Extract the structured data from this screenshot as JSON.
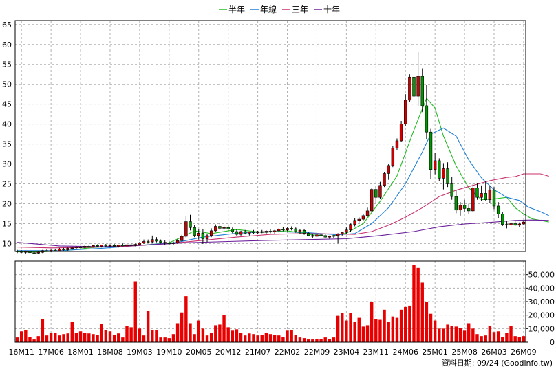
{
  "chart_data": {
    "type": "candlestick+bar",
    "legend": [
      {
        "label": "半年",
        "color": "#22bb22"
      },
      {
        "label": "年線",
        "color": "#1e7fd6"
      },
      {
        "label": "三年",
        "color": "#c8306e"
      },
      {
        "label": "十年",
        "color": "#6a1f9a"
      }
    ],
    "colors": {
      "up": "#cc0000",
      "down": "#009900",
      "volume": "#e80000",
      "grid": "#b0b0b0"
    },
    "price_axis": {
      "ylim": [
        8,
        66
      ],
      "ticks": [
        10,
        15,
        20,
        25,
        30,
        35,
        40,
        45,
        50,
        55,
        60,
        65
      ]
    },
    "volume_axis": {
      "ylim": [
        0,
        60000
      ],
      "ticks": [
        0,
        10000,
        20000,
        30000,
        40000,
        50000
      ],
      "tick_labels": [
        "0",
        "10,000",
        "20,000",
        "30,000",
        "40,000",
        "50,000"
      ]
    },
    "x_labels": [
      "16M11",
      "17M06",
      "18M01",
      "18M08",
      "19M03",
      "19M10",
      "20M05",
      "20M12",
      "21M07",
      "22M02",
      "22M09",
      "23M04",
      "23M11",
      "24M06",
      "25M01",
      "25M08",
      "26M03",
      "26M09"
    ],
    "label_start_index": 1,
    "label_step": 7,
    "start_month": "2016-10",
    "monthly": [
      [
        8.0,
        8.4,
        7.6,
        8.1,
        3500
      ],
      [
        8.1,
        8.3,
        7.6,
        7.8,
        8000
      ],
      [
        7.8,
        8.2,
        7.5,
        8.0,
        9000
      ],
      [
        8.0,
        8.2,
        7.6,
        7.7,
        4000
      ],
      [
        7.7,
        8.0,
        7.4,
        7.6,
        2000
      ],
      [
        7.6,
        8.0,
        7.4,
        7.8,
        4500
      ],
      [
        7.8,
        8.4,
        7.6,
        8.2,
        17000
      ],
      [
        8.2,
        8.6,
        7.9,
        8.0,
        5000
      ],
      [
        8.0,
        8.5,
        7.8,
        8.3,
        7000
      ],
      [
        8.3,
        8.7,
        8.0,
        8.2,
        7000
      ],
      [
        8.2,
        8.9,
        8.0,
        8.6,
        5000
      ],
      [
        8.6,
        8.9,
        8.2,
        8.4,
        6000
      ],
      [
        8.4,
        9.0,
        8.2,
        8.8,
        6500
      ],
      [
        8.8,
        9.2,
        8.5,
        8.9,
        15000
      ],
      [
        8.9,
        9.3,
        8.6,
        9.1,
        7000
      ],
      [
        9.1,
        9.4,
        8.8,
        9.0,
        8000
      ],
      [
        9.0,
        9.5,
        8.8,
        9.3,
        7000
      ],
      [
        9.3,
        9.6,
        9.0,
        9.2,
        6500
      ],
      [
        9.2,
        9.6,
        9.0,
        9.5,
        6000
      ],
      [
        9.5,
        9.8,
        9.1,
        9.3,
        5500
      ],
      [
        9.3,
        9.7,
        9.0,
        9.6,
        13500
      ],
      [
        9.6,
        9.9,
        9.2,
        9.4,
        9000
      ],
      [
        9.4,
        9.8,
        9.1,
        9.5,
        8000
      ],
      [
        9.5,
        9.9,
        9.2,
        9.3,
        5500
      ],
      [
        9.3,
        9.7,
        9.0,
        9.6,
        6500
      ],
      [
        9.6,
        10.0,
        9.3,
        9.4,
        3500
      ],
      [
        9.4,
        9.9,
        9.2,
        9.7,
        12000
      ],
      [
        9.7,
        10.2,
        9.4,
        9.5,
        11000
      ],
      [
        9.5,
        10.0,
        9.3,
        9.8,
        45000
      ],
      [
        9.8,
        10.4,
        9.5,
        10.2,
        10000
      ],
      [
        10.2,
        11.0,
        9.9,
        10.5,
        5000
      ],
      [
        10.5,
        11.0,
        10.1,
        10.4,
        23000
      ],
      [
        10.4,
        12.0,
        10.2,
        11.0,
        9000
      ],
      [
        11.0,
        11.6,
        10.3,
        10.6,
        9000
      ],
      [
        10.6,
        11.0,
        10.0,
        10.3,
        3500
      ],
      [
        10.3,
        10.8,
        9.7,
        10.1,
        3500
      ],
      [
        10.1,
        10.6,
        9.7,
        10.0,
        3000
      ],
      [
        10.0,
        10.5,
        9.6,
        10.2,
        6000
      ],
      [
        10.2,
        11.2,
        9.9,
        10.7,
        14000
      ],
      [
        10.7,
        12.2,
        10.5,
        11.8,
        22000
      ],
      [
        11.8,
        16.8,
        11.5,
        15.5,
        34000
      ],
      [
        15.5,
        17.2,
        13.3,
        14.0,
        14000
      ],
      [
        14.0,
        14.6,
        11.6,
        12.0,
        6000
      ],
      [
        12.0,
        13.6,
        11.0,
        12.6,
        16000
      ],
      [
        12.6,
        13.6,
        9.9,
        11.2,
        10000
      ],
      [
        11.2,
        12.4,
        10.4,
        12.0,
        5000
      ],
      [
        12.0,
        13.8,
        11.6,
        13.2,
        7000
      ],
      [
        13.2,
        14.8,
        12.9,
        14.3,
        12500
      ],
      [
        14.3,
        15.0,
        13.4,
        13.8,
        13000
      ],
      [
        13.8,
        14.8,
        13.2,
        14.0,
        20000
      ],
      [
        14.0,
        14.6,
        13.1,
        13.6,
        11000
      ],
      [
        13.6,
        14.0,
        12.6,
        13.0,
        8500
      ],
      [
        13.0,
        13.5,
        12.0,
        12.3,
        9500
      ],
      [
        12.3,
        13.2,
        12.0,
        13.0,
        7000
      ],
      [
        13.0,
        13.4,
        12.3,
        12.6,
        5000
      ],
      [
        12.6,
        13.0,
        12.0,
        12.9,
        6500
      ],
      [
        12.9,
        13.4,
        12.4,
        12.7,
        6000
      ],
      [
        12.7,
        13.2,
        12.3,
        13.0,
        5000
      ],
      [
        13.0,
        13.4,
        12.6,
        12.8,
        5500
      ],
      [
        12.8,
        13.3,
        12.4,
        13.1,
        7000
      ],
      [
        13.1,
        13.6,
        12.6,
        12.9,
        6000
      ],
      [
        12.9,
        13.4,
        12.5,
        13.2,
        5500
      ],
      [
        13.2,
        13.8,
        12.8,
        13.6,
        5000
      ],
      [
        13.6,
        14.2,
        13.1,
        13.4,
        4000
      ],
      [
        13.4,
        14.0,
        13.1,
        13.8,
        8500
      ],
      [
        13.8,
        14.3,
        13.3,
        13.7,
        9000
      ],
      [
        13.7,
        14.0,
        12.7,
        13.0,
        5500
      ],
      [
        13.0,
        13.6,
        12.5,
        13.3,
        3500
      ],
      [
        13.3,
        13.6,
        12.2,
        12.6,
        3000
      ],
      [
        12.6,
        12.9,
        11.8,
        12.0,
        2000
      ],
      [
        12.0,
        12.5,
        11.3,
        11.8,
        2000
      ],
      [
        11.8,
        12.5,
        11.4,
        12.2,
        2500
      ],
      [
        12.2,
        12.6,
        11.8,
        12.0,
        2500
      ],
      [
        12.0,
        12.4,
        11.3,
        11.6,
        3500
      ],
      [
        11.6,
        12.0,
        11.2,
        11.8,
        2500
      ],
      [
        11.8,
        12.2,
        11.4,
        12.0,
        3500
      ],
      [
        12.0,
        12.6,
        10.0,
        12.4,
        19500
      ],
      [
        12.4,
        13.0,
        12.0,
        12.8,
        21500
      ],
      [
        12.8,
        14.0,
        12.5,
        13.4,
        16000
      ],
      [
        13.4,
        15.0,
        13.0,
        14.8,
        21500
      ],
      [
        14.8,
        16.4,
        14.3,
        15.8,
        15000
      ],
      [
        15.8,
        16.6,
        15.3,
        16.1,
        18000
      ],
      [
        16.1,
        17.5,
        15.8,
        17.0,
        11500
      ],
      [
        17.0,
        19.0,
        16.7,
        18.2,
        12500
      ],
      [
        18.2,
        24.0,
        18.0,
        23.6,
        30000
      ],
      [
        23.6,
        24.4,
        20.2,
        21.6,
        17000
      ],
      [
        21.6,
        25.5,
        21.2,
        24.6,
        16500
      ],
      [
        24.6,
        28.0,
        24.2,
        27.6,
        24000
      ],
      [
        27.6,
        30.0,
        26.0,
        29.6,
        15000
      ],
      [
        29.6,
        34.5,
        29.2,
        34.0,
        19000
      ],
      [
        34.0,
        36.4,
        33.5,
        35.8,
        18000
      ],
      [
        35.8,
        40.8,
        35.5,
        40.0,
        24000
      ],
      [
        40.0,
        47.5,
        39.6,
        46.0,
        26000
      ],
      [
        46.0,
        52.5,
        45.5,
        51.8,
        27000
      ],
      [
        51.8,
        66.0,
        47.8,
        47.0,
        57000
      ],
      [
        47.0,
        58.2,
        44.6,
        52.0,
        55000
      ],
      [
        52.0,
        54.0,
        43.0,
        44.6,
        44000
      ],
      [
        44.6,
        49.8,
        36.2,
        38.0,
        30000
      ],
      [
        38.0,
        38.8,
        26.2,
        28.6,
        21000
      ],
      [
        28.6,
        32.8,
        27.4,
        30.8,
        16000
      ],
      [
        30.8,
        31.4,
        25.6,
        26.4,
        10000
      ],
      [
        26.4,
        30.2,
        23.6,
        28.8,
        10000
      ],
      [
        28.8,
        30.4,
        24.2,
        25.0,
        13000
      ],
      [
        25.0,
        26.8,
        21.0,
        21.8,
        12000
      ],
      [
        21.8,
        23.4,
        17.6,
        18.4,
        11500
      ],
      [
        18.4,
        20.4,
        17.0,
        19.6,
        10500
      ],
      [
        19.6,
        21.0,
        18.0,
        18.8,
        8500
      ],
      [
        18.8,
        20.0,
        17.4,
        18.2,
        14000
      ],
      [
        18.2,
        25.0,
        18.0,
        24.0,
        10000
      ],
      [
        24.0,
        25.2,
        21.0,
        21.6,
        6000
      ],
      [
        21.6,
        24.6,
        20.6,
        22.6,
        4500
      ],
      [
        22.6,
        25.6,
        20.8,
        21.0,
        5000
      ],
      [
        21.0,
        24.4,
        20.2,
        23.4,
        12000
      ],
      [
        23.4,
        24.2,
        18.6,
        19.4,
        7500
      ],
      [
        19.4,
        20.4,
        16.4,
        17.4,
        8000
      ],
      [
        17.4,
        18.0,
        14.4,
        14.8,
        4000
      ],
      [
        14.8,
        15.6,
        13.8,
        14.7,
        7000
      ],
      [
        14.7,
        15.4,
        14.0,
        15.0,
        12000
      ],
      [
        15.0,
        15.6,
        14.4,
        14.6,
        4500
      ],
      [
        14.6,
        15.3,
        14.2,
        14.9,
        4000
      ],
      [
        14.9,
        15.8,
        14.6,
        15.4,
        4500
      ]
    ],
    "ma_halfyear": [
      [
        0,
        7.9
      ],
      [
        6,
        7.9
      ],
      [
        12,
        8.3
      ],
      [
        18,
        9.0
      ],
      [
        24,
        9.4
      ],
      [
        30,
        9.6
      ],
      [
        36,
        10.2
      ],
      [
        39,
        11.6
      ],
      [
        42,
        13.2
      ],
      [
        46,
        12.5
      ],
      [
        52,
        13.5
      ],
      [
        58,
        12.8
      ],
      [
        64,
        13.2
      ],
      [
        70,
        12.2
      ],
      [
        74,
        11.8
      ],
      [
        78,
        12.6
      ],
      [
        82,
        15.0
      ],
      [
        86,
        20.6
      ],
      [
        90,
        27.0
      ],
      [
        94,
        38.5
      ],
      [
        97,
        46.5
      ],
      [
        99,
        44.0
      ],
      [
        101,
        37.0
      ],
      [
        104,
        29.5
      ],
      [
        107,
        24.0
      ],
      [
        110,
        21.0
      ],
      [
        113,
        21.2
      ],
      [
        116,
        21.6
      ],
      [
        118,
        19.0
      ],
      [
        120,
        17.4
      ],
      [
        122,
        16.2
      ],
      [
        126,
        15.4
      ]
    ],
    "ma_year": [
      [
        0,
        8.2
      ],
      [
        10,
        8.2
      ],
      [
        20,
        8.8
      ],
      [
        30,
        9.6
      ],
      [
        38,
        10.3
      ],
      [
        44,
        11.6
      ],
      [
        52,
        12.6
      ],
      [
        60,
        13.0
      ],
      [
        68,
        12.8
      ],
      [
        76,
        12.2
      ],
      [
        80,
        12.5
      ],
      [
        84,
        15.0
      ],
      [
        88,
        19.0
      ],
      [
        92,
        25.0
      ],
      [
        96,
        33.0
      ],
      [
        98,
        37.5
      ],
      [
        101,
        39.0
      ],
      [
        104,
        37.0
      ],
      [
        107,
        31.0
      ],
      [
        110,
        26.5
      ],
      [
        113,
        23.5
      ],
      [
        116,
        21.6
      ],
      [
        119,
        20.8
      ],
      [
        121,
        19.2
      ],
      [
        124,
        18.0
      ],
      [
        126,
        17.0
      ]
    ],
    "ma_3year": [
      [
        0,
        9.1
      ],
      [
        8,
        8.9
      ],
      [
        16,
        9.0
      ],
      [
        26,
        9.3
      ],
      [
        36,
        10.0
      ],
      [
        44,
        10.8
      ],
      [
        52,
        11.6
      ],
      [
        60,
        12.3
      ],
      [
        68,
        12.5
      ],
      [
        76,
        12.4
      ],
      [
        80,
        12.3
      ],
      [
        84,
        13.0
      ],
      [
        88,
        14.6
      ],
      [
        92,
        16.6
      ],
      [
        96,
        19.0
      ],
      [
        100,
        21.8
      ],
      [
        104,
        23.4
      ],
      [
        108,
        24.6
      ],
      [
        112,
        25.8
      ],
      [
        116,
        26.6
      ],
      [
        118,
        26.8
      ],
      [
        120,
        27.5
      ],
      [
        124,
        27.5
      ],
      [
        126,
        26.9
      ]
    ],
    "ma_10year": [
      [
        0,
        10.3
      ],
      [
        10,
        9.4
      ],
      [
        20,
        9.2
      ],
      [
        30,
        9.6
      ],
      [
        40,
        10.2
      ],
      [
        50,
        10.5
      ],
      [
        60,
        10.8
      ],
      [
        70,
        11.0
      ],
      [
        78,
        11.2
      ],
      [
        86,
        12.0
      ],
      [
        94,
        13.0
      ],
      [
        100,
        14.2
      ],
      [
        106,
        14.9
      ],
      [
        112,
        15.3
      ],
      [
        118,
        15.8
      ],
      [
        122,
        15.9
      ],
      [
        126,
        15.8
      ]
    ]
  },
  "footer": {
    "text": "資料日期: 09/24  (Goodinfo.tw)"
  }
}
